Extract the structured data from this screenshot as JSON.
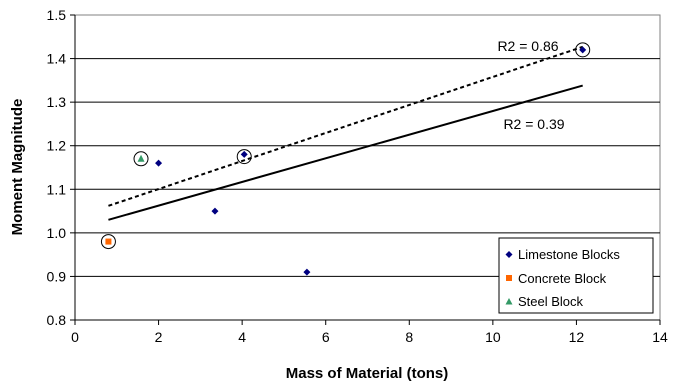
{
  "chart_data": {
    "type": "scatter",
    "title": "",
    "xlabel": "Mass of Material (tons)",
    "ylabel": "Moment Magnitude",
    "xlim": [
      0,
      14
    ],
    "ylim": [
      0.8,
      1.5
    ],
    "xticks": [
      0,
      2,
      4,
      6,
      8,
      10,
      12,
      14
    ],
    "yticks": [
      0.8,
      0.9,
      1.0,
      1.1,
      1.2,
      1.3,
      1.4,
      1.5
    ],
    "ytick_labels": [
      "0.8",
      "0.9",
      "1.0",
      "1.1",
      "1.2",
      "1.3",
      "1.4",
      "1.5"
    ],
    "grid": "horizontal",
    "legend_position": "bottom-right",
    "series": [
      {
        "name": "Limestone Blocks",
        "marker": "diamond",
        "color": "#000080",
        "points": [
          {
            "x": 2.0,
            "y": 1.16
          },
          {
            "x": 3.35,
            "y": 1.05
          },
          {
            "x": 4.05,
            "y": 1.18
          },
          {
            "x": 5.55,
            "y": 0.91
          },
          {
            "x": 12.15,
            "y": 1.42
          }
        ]
      },
      {
        "name": "Concrete Block",
        "marker": "square",
        "color": "#ff6600",
        "points": [
          {
            "x": 0.8,
            "y": 0.98
          }
        ]
      },
      {
        "name": "Steel Block",
        "marker": "triangle",
        "color": "#339966",
        "points": [
          {
            "x": 1.58,
            "y": 1.17
          }
        ]
      }
    ],
    "circled_points": [
      {
        "x": 0.8,
        "y": 0.98
      },
      {
        "x": 1.58,
        "y": 1.17
      },
      {
        "x": 4.05,
        "y": 1.175
      },
      {
        "x": 12.15,
        "y": 1.42
      }
    ],
    "trendlines": [
      {
        "style": "solid",
        "from": {
          "x": 0.8,
          "y": 1.03
        },
        "to": {
          "x": 12.15,
          "y": 1.338
        },
        "label": "R2 = 0.39"
      },
      {
        "style": "dotted",
        "from": {
          "x": 0.8,
          "y": 1.062
        },
        "to": {
          "x": 12.15,
          "y": 1.427
        },
        "label": "R2 = 0.86"
      }
    ]
  }
}
